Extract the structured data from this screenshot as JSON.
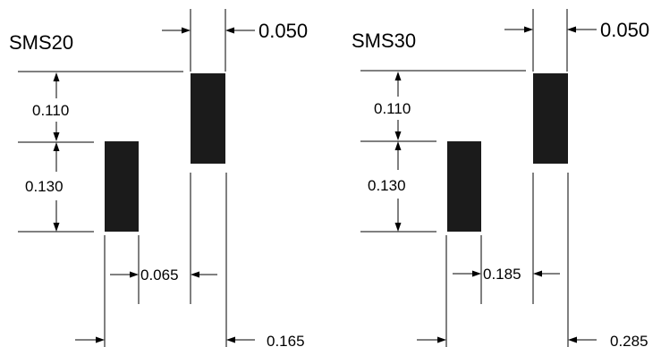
{
  "footprints": [
    {
      "title": "SMS20",
      "pad_width": "0.050",
      "pad_offset": "0.110",
      "pad_height": "0.130",
      "inner_gap": "0.065",
      "overall_span": "0.165"
    },
    {
      "title": "SMS30",
      "pad_width": "0.050",
      "pad_offset": "0.110",
      "pad_height": "0.130",
      "inner_gap": "0.185",
      "overall_span": "0.285"
    }
  ],
  "colors": {
    "pad_fill": "#1b1b1b",
    "line": "#000000",
    "background": "#ffffff"
  }
}
